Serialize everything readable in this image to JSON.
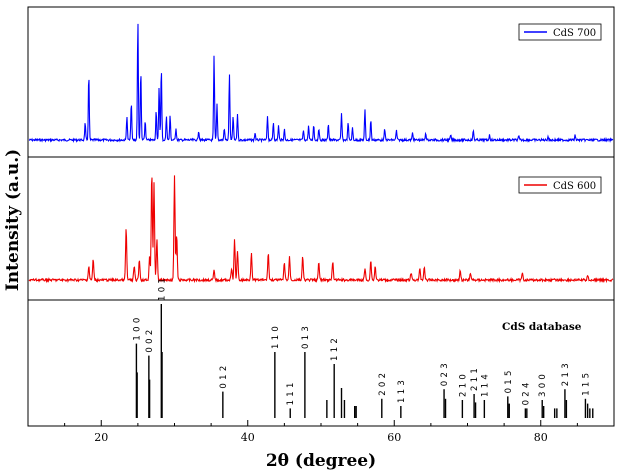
{
  "chart_data": [
    {
      "type": "line",
      "title": "",
      "legend": "CdS 700",
      "legend_position": "top-right",
      "color": "#0000ff",
      "xlim": [
        10,
        90
      ],
      "peaks": [
        {
          "x": 17.8,
          "h": 0.14
        },
        {
          "x": 18.3,
          "h": 0.55
        },
        {
          "x": 23.5,
          "h": 0.2
        },
        {
          "x": 24.1,
          "h": 0.32
        },
        {
          "x": 25.0,
          "h": 1.0
        },
        {
          "x": 25.4,
          "h": 0.58
        },
        {
          "x": 26.0,
          "h": 0.16
        },
        {
          "x": 27.5,
          "h": 0.25
        },
        {
          "x": 27.9,
          "h": 0.44
        },
        {
          "x": 28.2,
          "h": 0.6
        },
        {
          "x": 28.9,
          "h": 0.2
        },
        {
          "x": 29.4,
          "h": 0.2
        },
        {
          "x": 30.2,
          "h": 0.1
        },
        {
          "x": 33.3,
          "h": 0.08
        },
        {
          "x": 35.4,
          "h": 0.7
        },
        {
          "x": 35.8,
          "h": 0.3
        },
        {
          "x": 36.8,
          "h": 0.1
        },
        {
          "x": 37.5,
          "h": 0.55
        },
        {
          "x": 38.0,
          "h": 0.2
        },
        {
          "x": 38.6,
          "h": 0.22
        },
        {
          "x": 41.0,
          "h": 0.06
        },
        {
          "x": 42.7,
          "h": 0.2
        },
        {
          "x": 43.5,
          "h": 0.15
        },
        {
          "x": 44.2,
          "h": 0.12
        },
        {
          "x": 45.0,
          "h": 0.09
        },
        {
          "x": 47.6,
          "h": 0.08
        },
        {
          "x": 48.3,
          "h": 0.12
        },
        {
          "x": 49.0,
          "h": 0.13
        },
        {
          "x": 49.7,
          "h": 0.1
        },
        {
          "x": 51.0,
          "h": 0.14
        },
        {
          "x": 52.8,
          "h": 0.22
        },
        {
          "x": 53.7,
          "h": 0.15
        },
        {
          "x": 54.3,
          "h": 0.1
        },
        {
          "x": 56.0,
          "h": 0.25
        },
        {
          "x": 56.8,
          "h": 0.17
        },
        {
          "x": 58.7,
          "h": 0.09
        },
        {
          "x": 60.3,
          "h": 0.08
        },
        {
          "x": 62.5,
          "h": 0.06
        },
        {
          "x": 64.3,
          "h": 0.06
        },
        {
          "x": 67.7,
          "h": 0.04
        },
        {
          "x": 70.8,
          "h": 0.08
        },
        {
          "x": 73.0,
          "h": 0.04
        },
        {
          "x": 77.0,
          "h": 0.03
        },
        {
          "x": 81.0,
          "h": 0.03
        },
        {
          "x": 84.7,
          "h": 0.04
        }
      ]
    },
    {
      "type": "line",
      "title": "",
      "legend": "CdS 600",
      "legend_position": "top-right",
      "color": "#ee0000",
      "xlim": [
        10,
        90
      ],
      "peaks": [
        {
          "x": 18.3,
          "h": 0.12
        },
        {
          "x": 18.9,
          "h": 0.18
        },
        {
          "x": 23.4,
          "h": 0.45
        },
        {
          "x": 24.5,
          "h": 0.12
        },
        {
          "x": 25.2,
          "h": 0.18
        },
        {
          "x": 26.6,
          "h": 0.2
        },
        {
          "x": 26.9,
          "h": 0.95
        },
        {
          "x": 27.2,
          "h": 0.85
        },
        {
          "x": 27.6,
          "h": 0.35
        },
        {
          "x": 30.0,
          "h": 0.9
        },
        {
          "x": 30.3,
          "h": 0.4
        },
        {
          "x": 35.4,
          "h": 0.08
        },
        {
          "x": 37.8,
          "h": 0.1
        },
        {
          "x": 38.2,
          "h": 0.35
        },
        {
          "x": 38.6,
          "h": 0.25
        },
        {
          "x": 40.5,
          "h": 0.24
        },
        {
          "x": 42.8,
          "h": 0.24
        },
        {
          "x": 45.0,
          "h": 0.15
        },
        {
          "x": 45.7,
          "h": 0.2
        },
        {
          "x": 47.5,
          "h": 0.2
        },
        {
          "x": 49.7,
          "h": 0.15
        },
        {
          "x": 51.6,
          "h": 0.16
        },
        {
          "x": 56.0,
          "h": 0.1
        },
        {
          "x": 56.8,
          "h": 0.17
        },
        {
          "x": 57.4,
          "h": 0.12
        },
        {
          "x": 62.3,
          "h": 0.06
        },
        {
          "x": 63.5,
          "h": 0.1
        },
        {
          "x": 64.1,
          "h": 0.12
        },
        {
          "x": 69.0,
          "h": 0.08
        },
        {
          "x": 70.4,
          "h": 0.06
        },
        {
          "x": 77.5,
          "h": 0.06
        },
        {
          "x": 86.4,
          "h": 0.04
        }
      ]
    },
    {
      "type": "bar",
      "title": "CdS database",
      "xlabel": "2θ (degree)",
      "ylabel": "Intensity (a.u.)",
      "xlim": [
        10,
        90
      ],
      "xticks": [
        "20",
        "40",
        "60",
        "80"
      ],
      "sticks": [
        {
          "x": 24.8,
          "h": 0.62,
          "label": "100"
        },
        {
          "x": 24.9,
          "h": 0.38,
          "label": ""
        },
        {
          "x": 26.5,
          "h": 0.52,
          "label": "002"
        },
        {
          "x": 26.6,
          "h": 0.32,
          "label": ""
        },
        {
          "x": 28.2,
          "h": 0.95,
          "label": "101"
        },
        {
          "x": 28.3,
          "h": 0.55,
          "label": ""
        },
        {
          "x": 36.6,
          "h": 0.22,
          "label": "012"
        },
        {
          "x": 43.7,
          "h": 0.55,
          "label": "110"
        },
        {
          "x": 45.8,
          "h": 0.08,
          "label": "111"
        },
        {
          "x": 47.8,
          "h": 0.55,
          "label": "013"
        },
        {
          "x": 50.8,
          "h": 0.15,
          "label": ""
        },
        {
          "x": 51.8,
          "h": 0.45,
          "label": "112"
        },
        {
          "x": 52.8,
          "h": 0.25,
          "label": ""
        },
        {
          "x": 53.2,
          "h": 0.15,
          "label": ""
        },
        {
          "x": 54.6,
          "h": 0.1,
          "label": ""
        },
        {
          "x": 54.8,
          "h": 0.1,
          "label": ""
        },
        {
          "x": 58.3,
          "h": 0.16,
          "label": "202"
        },
        {
          "x": 60.9,
          "h": 0.1,
          "label": "113"
        },
        {
          "x": 66.8,
          "h": 0.24,
          "label": "023"
        },
        {
          "x": 67.0,
          "h": 0.16,
          "label": ""
        },
        {
          "x": 69.3,
          "h": 0.15,
          "label": "210"
        },
        {
          "x": 70.9,
          "h": 0.2,
          "label": "211"
        },
        {
          "x": 71.1,
          "h": 0.13,
          "label": ""
        },
        {
          "x": 72.3,
          "h": 0.15,
          "label": "114"
        },
        {
          "x": 75.5,
          "h": 0.18,
          "label": "015"
        },
        {
          "x": 75.7,
          "h": 0.12,
          "label": ""
        },
        {
          "x": 77.9,
          "h": 0.08,
          "label": "024"
        },
        {
          "x": 78.1,
          "h": 0.08,
          "label": ""
        },
        {
          "x": 80.2,
          "h": 0.15,
          "label": "300"
        },
        {
          "x": 80.4,
          "h": 0.1,
          "label": ""
        },
        {
          "x": 81.9,
          "h": 0.08,
          "label": ""
        },
        {
          "x": 82.2,
          "h": 0.08,
          "label": ""
        },
        {
          "x": 83.3,
          "h": 0.24,
          "label": "213"
        },
        {
          "x": 83.5,
          "h": 0.15,
          "label": ""
        },
        {
          "x": 86.1,
          "h": 0.16,
          "label": "115"
        },
        {
          "x": 86.4,
          "h": 0.12,
          "label": ""
        },
        {
          "x": 86.7,
          "h": 0.08,
          "label": ""
        },
        {
          "x": 87.1,
          "h": 0.08,
          "label": ""
        }
      ]
    }
  ]
}
